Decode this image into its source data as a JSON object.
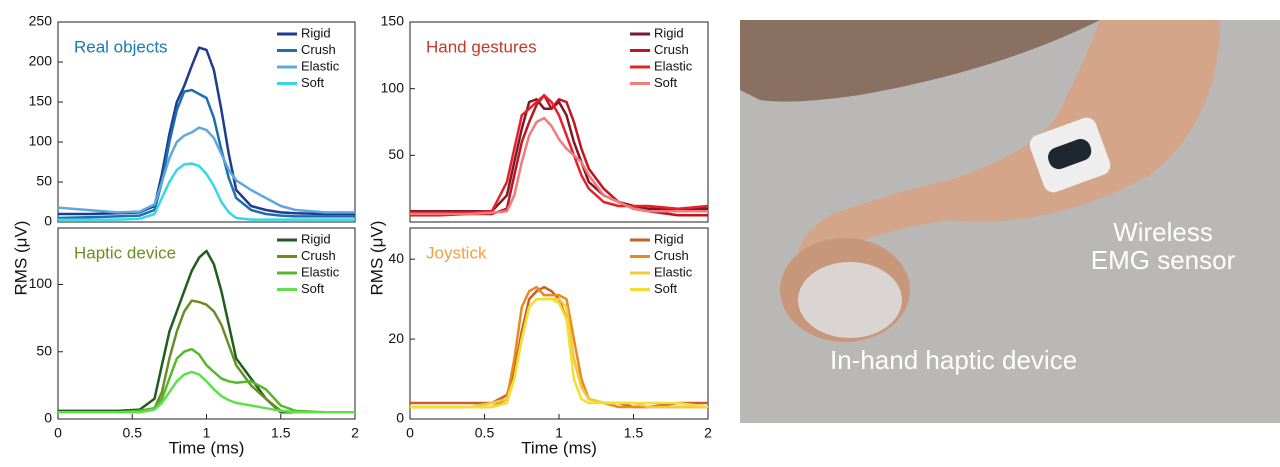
{
  "chart_data": [
    {
      "type": "line",
      "title": "Real objects",
      "title_color": "#1a7ab0",
      "legend": "upper right",
      "y_label": "RMS (μV)",
      "x": [
        0,
        0.2,
        0.4,
        0.55,
        0.65,
        0.7,
        0.75,
        0.8,
        0.85,
        0.9,
        0.95,
        1.0,
        1.05,
        1.1,
        1.15,
        1.2,
        1.3,
        1.4,
        1.5,
        1.6,
        1.8,
        2.0
      ],
      "xlim": [
        0,
        2
      ],
      "ylim": [
        0,
        250
      ],
      "yticks": [
        0,
        50,
        100,
        150,
        200,
        250
      ],
      "series": [
        {
          "name": "Rigid",
          "color": "#1f3a93",
          "values": [
            10,
            10,
            11,
            12,
            20,
            60,
            110,
            150,
            170,
            195,
            218,
            215,
            190,
            140,
            85,
            40,
            20,
            15,
            12,
            11,
            10,
            10
          ]
        },
        {
          "name": "Crush",
          "color": "#1a6faf",
          "values": [
            5,
            6,
            7,
            8,
            15,
            50,
            100,
            140,
            163,
            165,
            160,
            155,
            130,
            90,
            55,
            30,
            15,
            10,
            8,
            7,
            7,
            7
          ]
        },
        {
          "name": "Elastic",
          "color": "#5fa8dc",
          "values": [
            18,
            15,
            12,
            13,
            22,
            50,
            80,
            100,
            108,
            112,
            118,
            115,
            105,
            85,
            65,
            52,
            40,
            30,
            20,
            15,
            12,
            12
          ]
        },
        {
          "name": "Soft",
          "color": "#36d6e8",
          "values": [
            3,
            3,
            3,
            4,
            10,
            30,
            50,
            65,
            72,
            73,
            70,
            60,
            45,
            25,
            12,
            5,
            3,
            3,
            3,
            3,
            3,
            3
          ]
        }
      ]
    },
    {
      "type": "line",
      "title": "Haptic device",
      "title_color": "#6b8e23",
      "legend": "upper right",
      "x_label": "Time (ms)",
      "x": [
        0,
        0.2,
        0.4,
        0.55,
        0.65,
        0.7,
        0.75,
        0.8,
        0.85,
        0.9,
        0.95,
        1.0,
        1.05,
        1.1,
        1.15,
        1.2,
        1.3,
        1.4,
        1.5,
        1.6,
        1.8,
        2.0
      ],
      "xlim": [
        0,
        2
      ],
      "ylim": [
        0,
        142
      ],
      "yticks": [
        0,
        50,
        100
      ],
      "xticks": [
        0,
        0.5,
        1,
        1.5,
        2
      ],
      "series": [
        {
          "name": "Rigid",
          "color": "#1f5e1f",
          "values": [
            6,
            6,
            6,
            7,
            15,
            40,
            65,
            80,
            95,
            110,
            120,
            125,
            115,
            95,
            70,
            45,
            30,
            15,
            5,
            5,
            5,
            5
          ]
        },
        {
          "name": "Crush",
          "color": "#6b8e23",
          "values": [
            5,
            5,
            5,
            6,
            8,
            20,
            45,
            65,
            80,
            88,
            87,
            85,
            80,
            70,
            55,
            40,
            25,
            15,
            6,
            5,
            5,
            5
          ]
        },
        {
          "name": "Elastic",
          "color": "#55b82c",
          "values": [
            5,
            5,
            5,
            6,
            8,
            15,
            30,
            45,
            50,
            52,
            48,
            40,
            35,
            30,
            28,
            27,
            28,
            22,
            10,
            6,
            5,
            5
          ]
        },
        {
          "name": "Soft",
          "color": "#5ee04a",
          "values": [
            5,
            5,
            5,
            5,
            7,
            12,
            20,
            28,
            33,
            35,
            33,
            28,
            22,
            17,
            14,
            12,
            10,
            8,
            6,
            5,
            5,
            5
          ]
        }
      ]
    },
    {
      "type": "line",
      "title": "Hand gestures",
      "title_color": "#c0392b",
      "legend": "upper right",
      "y_label": "RMS (μV)",
      "x": [
        0,
        0.2,
        0.4,
        0.55,
        0.65,
        0.7,
        0.75,
        0.8,
        0.85,
        0.9,
        0.95,
        1.0,
        1.05,
        1.1,
        1.15,
        1.2,
        1.3,
        1.4,
        1.5,
        1.6,
        1.8,
        2.0
      ],
      "xlim": [
        0,
        2
      ],
      "ylim": [
        0,
        150
      ],
      "yticks": [
        50,
        100,
        150
      ],
      "series": [
        {
          "name": "Rigid",
          "color": "#7a1a2a",
          "values": [
            8,
            8,
            8,
            8,
            20,
            45,
            70,
            90,
            92,
            85,
            85,
            90,
            80,
            60,
            45,
            30,
            20,
            15,
            12,
            10,
            10,
            10
          ]
        },
        {
          "name": "Crush",
          "color": "#c0141e",
          "values": [
            5,
            5,
            6,
            6,
            10,
            35,
            60,
            75,
            88,
            95,
            85,
            92,
            90,
            75,
            55,
            40,
            25,
            15,
            10,
            8,
            5,
            5
          ]
        },
        {
          "name": "Elastic",
          "color": "#e8202a",
          "values": [
            7,
            7,
            7,
            8,
            30,
            55,
            80,
            85,
            90,
            95,
            90,
            80,
            65,
            50,
            35,
            25,
            15,
            12,
            12,
            12,
            10,
            12
          ]
        },
        {
          "name": "Soft",
          "color": "#f07c7c",
          "values": [
            6,
            6,
            6,
            7,
            8,
            20,
            45,
            65,
            75,
            78,
            72,
            62,
            55,
            50,
            45,
            35,
            20,
            15,
            10,
            8,
            8,
            8
          ]
        }
      ]
    },
    {
      "type": "line",
      "title": "Joystick",
      "title_color": "#f0a040",
      "legend": "upper right",
      "x_label": "Time (ms)",
      "x": [
        0,
        0.2,
        0.4,
        0.55,
        0.65,
        0.7,
        0.75,
        0.8,
        0.85,
        0.9,
        0.95,
        1.0,
        1.05,
        1.1,
        1.15,
        1.2,
        1.3,
        1.4,
        1.5,
        1.6,
        1.8,
        2.0
      ],
      "xlim": [
        0,
        2
      ],
      "ylim": [
        0,
        47.8
      ],
      "yticks": [
        0,
        20,
        40
      ],
      "xticks": [
        0,
        0.5,
        1,
        1.5,
        2
      ],
      "series": [
        {
          "name": "Rigid",
          "color": "#c8602a",
          "values": [
            4,
            4,
            4,
            4,
            6,
            12,
            22,
            30,
            32,
            33,
            32,
            30,
            25,
            15,
            8,
            5,
            4,
            4,
            3,
            3,
            4,
            4
          ]
        },
        {
          "name": "Crush",
          "color": "#e88a1e",
          "values": [
            3,
            3,
            3,
            3,
            5,
            15,
            28,
            32,
            33,
            31,
            31,
            31,
            30,
            20,
            10,
            5,
            4,
            3,
            3,
            3,
            3,
            3
          ]
        },
        {
          "name": "Elastic",
          "color": "#f5c842",
          "values": [
            3,
            3,
            3,
            4,
            5,
            10,
            20,
            28,
            30,
            30,
            30,
            30,
            28,
            15,
            8,
            5,
            4,
            4,
            4,
            3,
            3,
            3
          ]
        },
        {
          "name": "Soft",
          "color": "#f0e030",
          "values": [
            3,
            3,
            3,
            3,
            4,
            10,
            20,
            28,
            30,
            30,
            30,
            29,
            25,
            10,
            5,
            4,
            4,
            4,
            4,
            4,
            4,
            3
          ]
        }
      ]
    }
  ],
  "photo": {
    "sensor_label": [
      "Wireless",
      "EMG sensor"
    ],
    "device_label": "In-hand haptic device"
  }
}
